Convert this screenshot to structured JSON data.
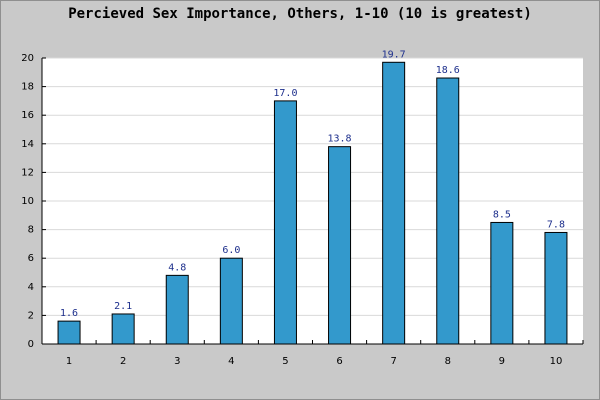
{
  "chart_data": {
    "type": "bar",
    "title": "Percieved Sex Importance, Others, 1-10 (10 is greatest)",
    "xlabel": "",
    "ylabel": "",
    "categories": [
      "1",
      "2",
      "3",
      "4",
      "5",
      "6",
      "7",
      "8",
      "9",
      "10"
    ],
    "values": [
      1.6,
      2.1,
      4.8,
      6.0,
      17.0,
      13.8,
      19.7,
      18.6,
      8.5,
      7.8
    ],
    "value_labels": [
      "1.6",
      "2.1",
      "4.8",
      "6.0",
      "17.0",
      "13.8",
      "19.7",
      "18.6",
      "8.5",
      "7.8"
    ],
    "ylim": [
      0,
      20
    ],
    "yticks": [
      0,
      2,
      4,
      6,
      8,
      10,
      12,
      14,
      16,
      18,
      20
    ],
    "grid": true,
    "colors": {
      "page_background": "#c9c9c9",
      "plot_background": "#ffffff",
      "bar_fill": "#3399cc",
      "bar_stroke": "#000000",
      "grid": "#d9d9d9",
      "axis": "#000000",
      "value_label": "#1d2f8c"
    }
  }
}
